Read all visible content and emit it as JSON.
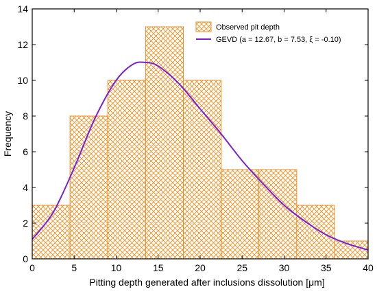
{
  "chart_data": {
    "type": "bar",
    "title": "",
    "xlabel": "Pitting depth generated after inclusions dissolution [μm]",
    "ylabel": "Frequency",
    "xlim": [
      0,
      40
    ],
    "ylim": [
      0,
      14
    ],
    "x_ticks": [
      0,
      5,
      10,
      15,
      20,
      25,
      30,
      35,
      40
    ],
    "y_ticks": [
      0,
      2,
      4,
      6,
      8,
      10,
      12,
      14
    ],
    "grid": false,
    "legend_position": "top-right",
    "histogram": {
      "name": "Observed pit depth",
      "bin_edges": [
        0,
        4.5,
        9,
        13.5,
        18,
        22.5,
        27,
        31.5,
        36,
        40.5
      ],
      "values": [
        3,
        8,
        10,
        13,
        10,
        5,
        5,
        3,
        1
      ],
      "color": "#F28C1C"
    },
    "series": [
      {
        "name": "GEVD (a = 12.67, b = 7.53, ξ = -0.10)",
        "type": "line",
        "color": "#7A1FD6",
        "x": [
          0,
          2.5,
          5,
          7.5,
          10,
          12,
          13.5,
          15,
          17.5,
          20,
          22.5,
          25,
          27.5,
          30,
          32.5,
          35,
          37.5,
          40
        ],
        "values": [
          1.1,
          2.6,
          5.1,
          7.9,
          10.0,
          10.9,
          11.0,
          10.8,
          9.8,
          8.4,
          7.0,
          5.5,
          4.2,
          3.0,
          2.1,
          1.35,
          0.85,
          0.5
        ]
      }
    ]
  }
}
